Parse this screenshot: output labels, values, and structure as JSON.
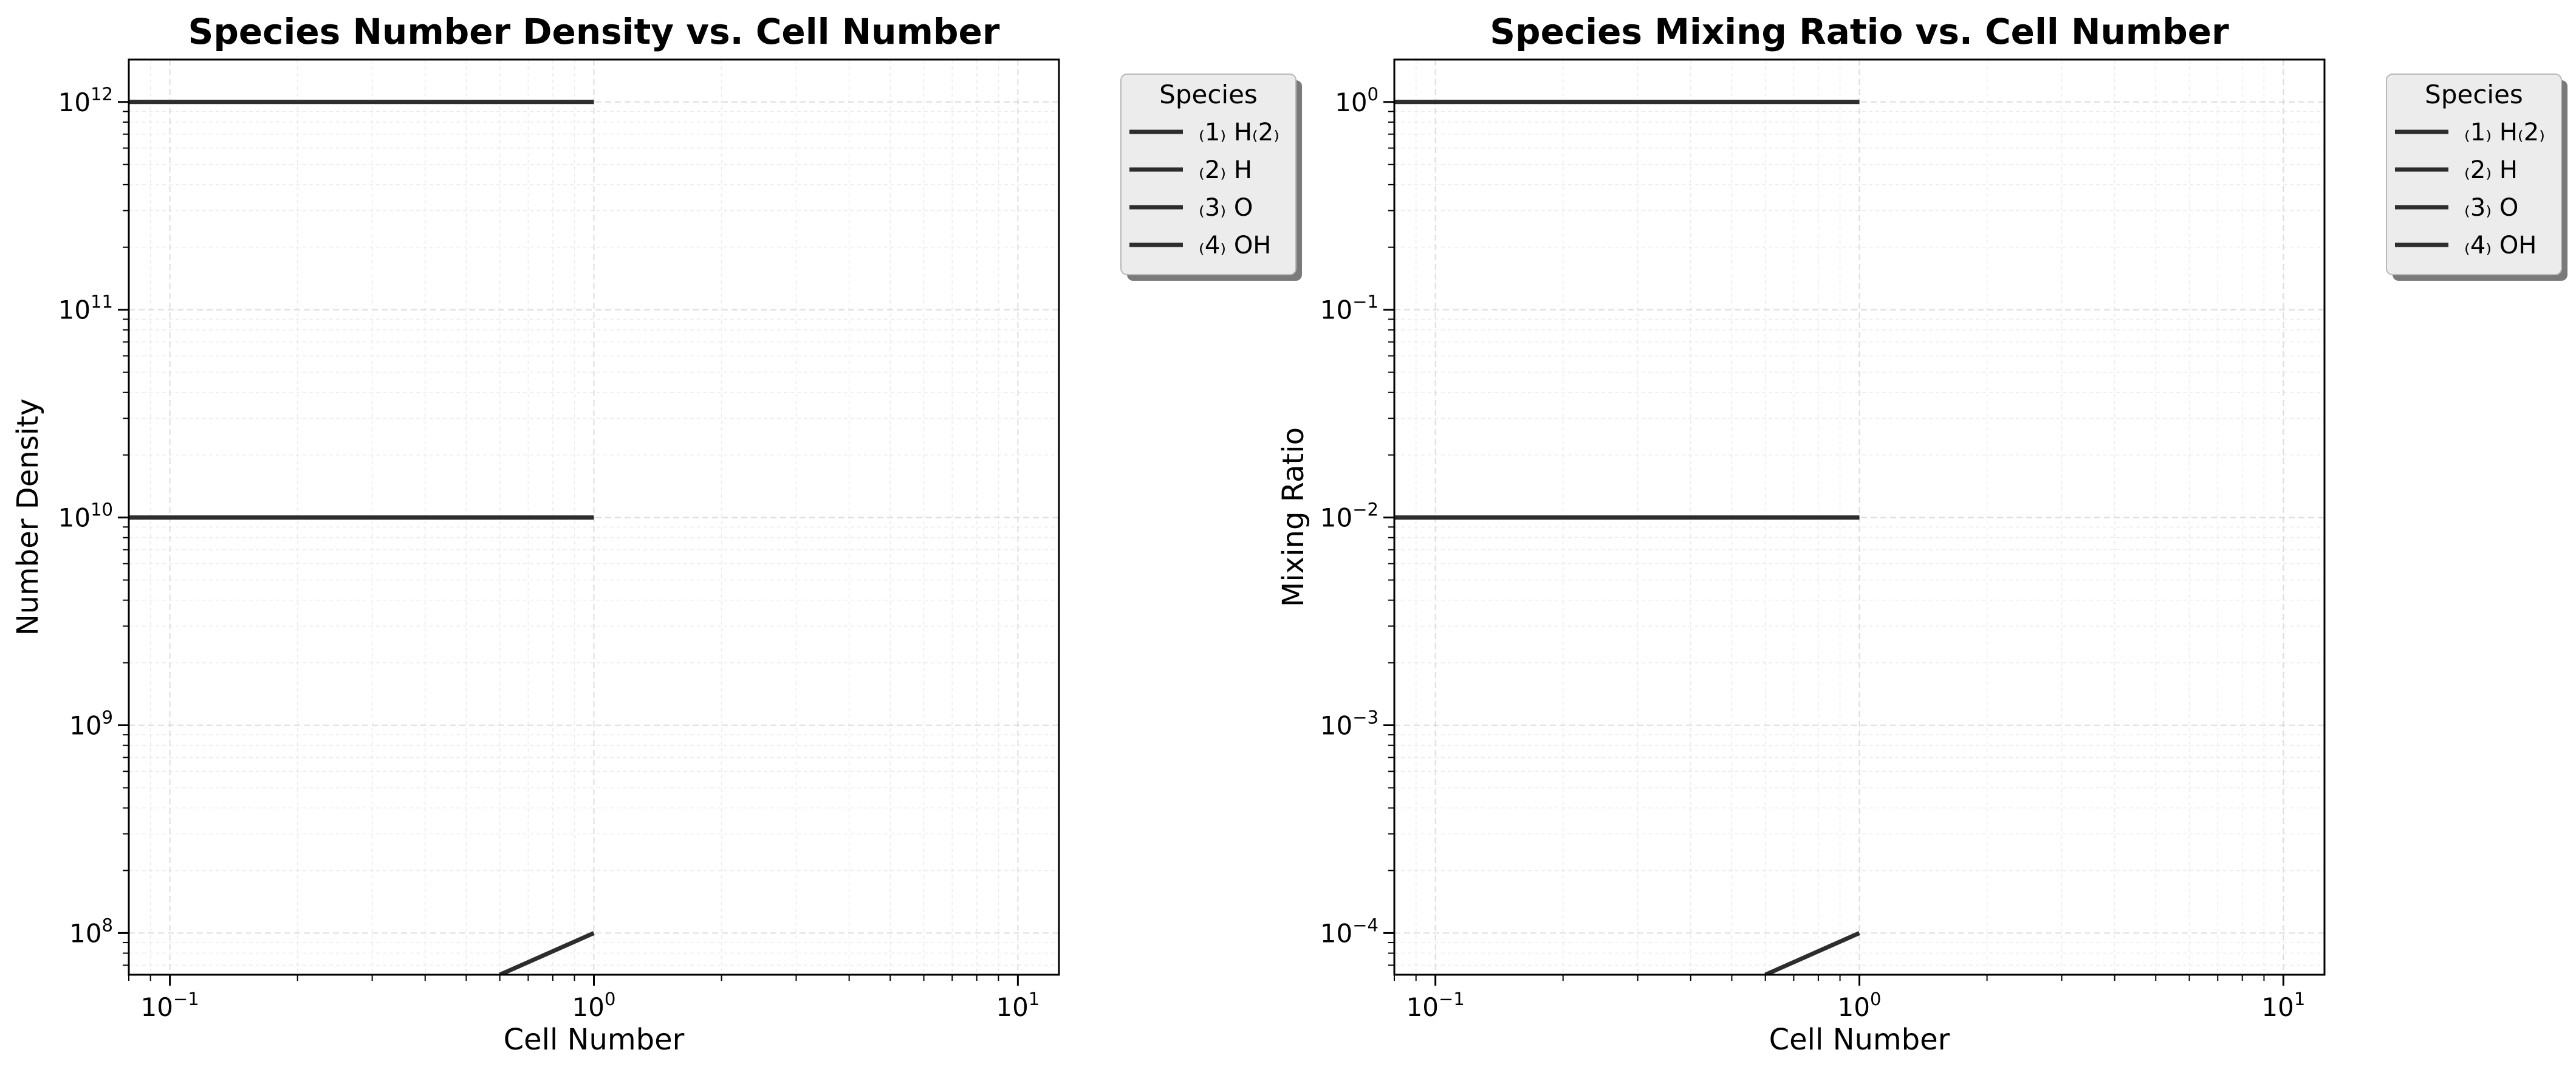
{
  "figure": {
    "background": "#ffffff",
    "line_color": "#2d2d2d"
  },
  "chart_data": [
    {
      "type": "line",
      "title": "Species Number Density vs. Cell Number",
      "xlabel": "Cell Number",
      "ylabel": "Number Density",
      "xscale": "log",
      "yscale": "log",
      "xlim": [
        0.08,
        12.5
      ],
      "ylim": [
        63000000.0,
        1600000000000.0
      ],
      "x_ticks": [
        {
          "value": 0.1,
          "base": "10",
          "exp": "−1"
        },
        {
          "value": 1,
          "base": "10",
          "exp": "0"
        },
        {
          "value": 10,
          "base": "10",
          "exp": "1"
        }
      ],
      "y_ticks": [
        {
          "value": 100000000.0,
          "base": "10",
          "exp": "8"
        },
        {
          "value": 1000000000.0,
          "base": "10",
          "exp": "9"
        },
        {
          "value": 10000000000.0,
          "base": "10",
          "exp": "10"
        },
        {
          "value": 100000000000.0,
          "base": "10",
          "exp": "11"
        },
        {
          "value": 1000000000000.0,
          "base": "10",
          "exp": "12"
        }
      ],
      "grid": true,
      "legend_position": "outside-top-right",
      "legend_title": "Species",
      "series": [
        {
          "name": "₍1₎ H₍2₎",
          "x": [
            0.08,
            1
          ],
          "y": [
            1000000000000.0,
            1000000000000.0
          ]
        },
        {
          "name": "₍2₎ H",
          "x": [
            0.08,
            1
          ],
          "y": [
            10000000000.0,
            10000000000.0
          ]
        },
        {
          "name": "₍3₎ O",
          "x": [
            0.6,
            1
          ],
          "y": [
            63000000.0,
            100000000.0
          ]
        },
        {
          "name": "₍4₎ OH",
          "x": [],
          "y": []
        }
      ]
    },
    {
      "type": "line",
      "title": "Species Mixing Ratio vs. Cell Number",
      "xlabel": "Cell Number",
      "ylabel": "Mixing Ratio",
      "xscale": "log",
      "yscale": "log",
      "xlim": [
        0.08,
        12.5
      ],
      "ylim": [
        6.3e-05,
        1.6
      ],
      "x_ticks": [
        {
          "value": 0.1,
          "base": "10",
          "exp": "−1"
        },
        {
          "value": 1,
          "base": "10",
          "exp": "0"
        },
        {
          "value": 10,
          "base": "10",
          "exp": "1"
        }
      ],
      "y_ticks": [
        {
          "value": 0.0001,
          "base": "10",
          "exp": "−4"
        },
        {
          "value": 0.001,
          "base": "10",
          "exp": "−3"
        },
        {
          "value": 0.01,
          "base": "10",
          "exp": "−2"
        },
        {
          "value": 0.1,
          "base": "10",
          "exp": "−1"
        },
        {
          "value": 1,
          "base": "10",
          "exp": "0"
        }
      ],
      "grid": true,
      "legend_position": "outside-top-right",
      "legend_title": "Species",
      "series": [
        {
          "name": "₍1₎ H₍2₎",
          "x": [
            0.08,
            1
          ],
          "y": [
            1,
            1
          ]
        },
        {
          "name": "₍2₎ H",
          "x": [
            0.08,
            1
          ],
          "y": [
            0.01,
            0.01
          ]
        },
        {
          "name": "₍3₎ O",
          "x": [
            0.6,
            1
          ],
          "y": [
            6.3e-05,
            0.0001
          ]
        },
        {
          "name": "₍4₎ OH",
          "x": [],
          "y": []
        }
      ]
    }
  ]
}
